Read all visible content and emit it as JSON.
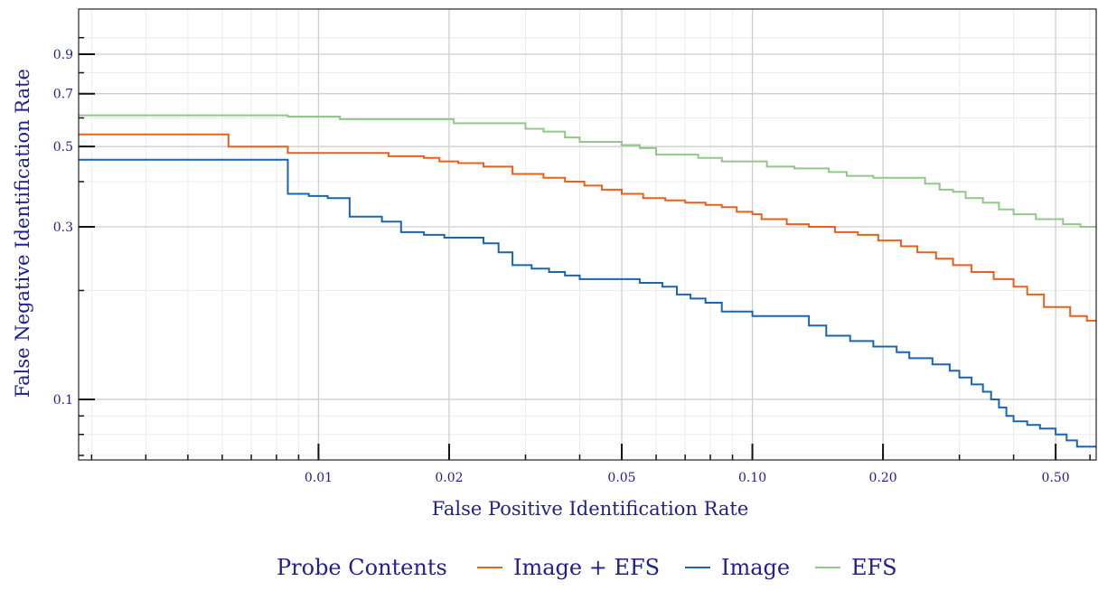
{
  "chart_data": {
    "type": "line",
    "step": true,
    "xlabel": "False Positive Identification Rate",
    "ylabel": "False Negative Identification Rate",
    "xscale": "log",
    "yscale": "log",
    "xlim": [
      0.0028,
      0.62
    ],
    "ylim": [
      0.068,
      1.2
    ],
    "x_tick_labels": [
      {
        "value": 0.01,
        "label": "0.01"
      },
      {
        "value": 0.02,
        "label": "0.02"
      },
      {
        "value": 0.05,
        "label": "0.05"
      },
      {
        "value": 0.1,
        "label": "0.10"
      },
      {
        "value": 0.2,
        "label": "0.20"
      },
      {
        "value": 0.5,
        "label": "0.50"
      }
    ],
    "y_tick_labels": [
      {
        "value": 0.1,
        "label": "0.1"
      },
      {
        "value": 0.3,
        "label": "0.3"
      },
      {
        "value": 0.5,
        "label": "0.5"
      },
      {
        "value": 0.7,
        "label": "0.7"
      },
      {
        "value": 0.9,
        "label": "0.9"
      }
    ],
    "grid": true,
    "legend": {
      "title": "Probe Contents",
      "position": "bottom"
    },
    "series": [
      {
        "name": "Image + EFS",
        "color": "#e8601c",
        "points": [
          [
            0.0028,
            0.54
          ],
          [
            0.0062,
            0.54
          ],
          [
            0.0062,
            0.5
          ],
          [
            0.0085,
            0.5
          ],
          [
            0.0085,
            0.48
          ],
          [
            0.0145,
            0.48
          ],
          [
            0.0145,
            0.47
          ],
          [
            0.0175,
            0.47
          ],
          [
            0.0175,
            0.465
          ],
          [
            0.019,
            0.465
          ],
          [
            0.019,
            0.455
          ],
          [
            0.021,
            0.455
          ],
          [
            0.021,
            0.45
          ],
          [
            0.024,
            0.45
          ],
          [
            0.024,
            0.44
          ],
          [
            0.028,
            0.44
          ],
          [
            0.028,
            0.42
          ],
          [
            0.033,
            0.42
          ],
          [
            0.033,
            0.41
          ],
          [
            0.037,
            0.41
          ],
          [
            0.037,
            0.4
          ],
          [
            0.041,
            0.4
          ],
          [
            0.041,
            0.39
          ],
          [
            0.045,
            0.39
          ],
          [
            0.045,
            0.38
          ],
          [
            0.05,
            0.38
          ],
          [
            0.05,
            0.37
          ],
          [
            0.056,
            0.37
          ],
          [
            0.056,
            0.36
          ],
          [
            0.063,
            0.36
          ],
          [
            0.063,
            0.355
          ],
          [
            0.07,
            0.355
          ],
          [
            0.07,
            0.35
          ],
          [
            0.078,
            0.35
          ],
          [
            0.078,
            0.345
          ],
          [
            0.085,
            0.345
          ],
          [
            0.085,
            0.34
          ],
          [
            0.092,
            0.34
          ],
          [
            0.092,
            0.33
          ],
          [
            0.1,
            0.33
          ],
          [
            0.1,
            0.325
          ],
          [
            0.105,
            0.325
          ],
          [
            0.105,
            0.315
          ],
          [
            0.12,
            0.315
          ],
          [
            0.12,
            0.305
          ],
          [
            0.135,
            0.305
          ],
          [
            0.135,
            0.3
          ],
          [
            0.155,
            0.3
          ],
          [
            0.155,
            0.29
          ],
          [
            0.175,
            0.29
          ],
          [
            0.175,
            0.285
          ],
          [
            0.195,
            0.285
          ],
          [
            0.195,
            0.275
          ],
          [
            0.22,
            0.275
          ],
          [
            0.22,
            0.265
          ],
          [
            0.24,
            0.265
          ],
          [
            0.24,
            0.255
          ],
          [
            0.265,
            0.255
          ],
          [
            0.265,
            0.245
          ],
          [
            0.29,
            0.245
          ],
          [
            0.29,
            0.235
          ],
          [
            0.32,
            0.235
          ],
          [
            0.32,
            0.225
          ],
          [
            0.36,
            0.225
          ],
          [
            0.36,
            0.215
          ],
          [
            0.4,
            0.215
          ],
          [
            0.4,
            0.205
          ],
          [
            0.43,
            0.205
          ],
          [
            0.43,
            0.195
          ],
          [
            0.47,
            0.195
          ],
          [
            0.47,
            0.18
          ],
          [
            0.54,
            0.18
          ],
          [
            0.54,
            0.17
          ],
          [
            0.59,
            0.17
          ],
          [
            0.59,
            0.165
          ],
          [
            0.62,
            0.165
          ]
        ]
      },
      {
        "name": "Image",
        "color": "#1965b0",
        "points": [
          [
            0.0028,
            0.46
          ],
          [
            0.0085,
            0.46
          ],
          [
            0.0085,
            0.37
          ],
          [
            0.0095,
            0.37
          ],
          [
            0.0095,
            0.365
          ],
          [
            0.0105,
            0.365
          ],
          [
            0.0105,
            0.36
          ],
          [
            0.0118,
            0.36
          ],
          [
            0.0118,
            0.32
          ],
          [
            0.014,
            0.32
          ],
          [
            0.014,
            0.31
          ],
          [
            0.0155,
            0.31
          ],
          [
            0.0155,
            0.29
          ],
          [
            0.0175,
            0.29
          ],
          [
            0.0175,
            0.285
          ],
          [
            0.0195,
            0.285
          ],
          [
            0.0195,
            0.28
          ],
          [
            0.024,
            0.28
          ],
          [
            0.024,
            0.27
          ],
          [
            0.026,
            0.27
          ],
          [
            0.026,
            0.255
          ],
          [
            0.028,
            0.255
          ],
          [
            0.028,
            0.235
          ],
          [
            0.031,
            0.235
          ],
          [
            0.031,
            0.23
          ],
          [
            0.034,
            0.23
          ],
          [
            0.034,
            0.225
          ],
          [
            0.037,
            0.225
          ],
          [
            0.037,
            0.22
          ],
          [
            0.04,
            0.22
          ],
          [
            0.04,
            0.215
          ],
          [
            0.055,
            0.215
          ],
          [
            0.055,
            0.21
          ],
          [
            0.062,
            0.21
          ],
          [
            0.062,
            0.205
          ],
          [
            0.067,
            0.205
          ],
          [
            0.067,
            0.195
          ],
          [
            0.072,
            0.195
          ],
          [
            0.072,
            0.19
          ],
          [
            0.078,
            0.19
          ],
          [
            0.078,
            0.185
          ],
          [
            0.085,
            0.185
          ],
          [
            0.085,
            0.175
          ],
          [
            0.1,
            0.175
          ],
          [
            0.1,
            0.17
          ],
          [
            0.135,
            0.17
          ],
          [
            0.135,
            0.16
          ],
          [
            0.148,
            0.16
          ],
          [
            0.148,
            0.15
          ],
          [
            0.168,
            0.15
          ],
          [
            0.168,
            0.145
          ],
          [
            0.19,
            0.145
          ],
          [
            0.19,
            0.14
          ],
          [
            0.215,
            0.14
          ],
          [
            0.215,
            0.135
          ],
          [
            0.23,
            0.135
          ],
          [
            0.23,
            0.13
          ],
          [
            0.26,
            0.13
          ],
          [
            0.26,
            0.125
          ],
          [
            0.285,
            0.125
          ],
          [
            0.285,
            0.12
          ],
          [
            0.3,
            0.12
          ],
          [
            0.3,
            0.115
          ],
          [
            0.32,
            0.115
          ],
          [
            0.32,
            0.11
          ],
          [
            0.34,
            0.11
          ],
          [
            0.34,
            0.105
          ],
          [
            0.355,
            0.105
          ],
          [
            0.355,
            0.1
          ],
          [
            0.37,
            0.1
          ],
          [
            0.37,
            0.095
          ],
          [
            0.385,
            0.095
          ],
          [
            0.385,
            0.09
          ],
          [
            0.4,
            0.09
          ],
          [
            0.4,
            0.087
          ],
          [
            0.43,
            0.087
          ],
          [
            0.43,
            0.085
          ],
          [
            0.46,
            0.085
          ],
          [
            0.46,
            0.083
          ],
          [
            0.5,
            0.083
          ],
          [
            0.5,
            0.08
          ],
          [
            0.53,
            0.08
          ],
          [
            0.53,
            0.077
          ],
          [
            0.56,
            0.077
          ],
          [
            0.56,
            0.074
          ],
          [
            0.62,
            0.074
          ]
        ]
      },
      {
        "name": "EFS",
        "color": "#90c987",
        "points": [
          [
            0.0028,
            0.61
          ],
          [
            0.0085,
            0.61
          ],
          [
            0.0085,
            0.605
          ],
          [
            0.0112,
            0.605
          ],
          [
            0.0112,
            0.595
          ],
          [
            0.0205,
            0.595
          ],
          [
            0.0205,
            0.58
          ],
          [
            0.03,
            0.58
          ],
          [
            0.03,
            0.56
          ],
          [
            0.033,
            0.56
          ],
          [
            0.033,
            0.55
          ],
          [
            0.037,
            0.55
          ],
          [
            0.037,
            0.53
          ],
          [
            0.04,
            0.53
          ],
          [
            0.04,
            0.515
          ],
          [
            0.05,
            0.515
          ],
          [
            0.05,
            0.505
          ],
          [
            0.055,
            0.505
          ],
          [
            0.055,
            0.495
          ],
          [
            0.06,
            0.495
          ],
          [
            0.06,
            0.475
          ],
          [
            0.075,
            0.475
          ],
          [
            0.075,
            0.465
          ],
          [
            0.085,
            0.465
          ],
          [
            0.085,
            0.455
          ],
          [
            0.108,
            0.455
          ],
          [
            0.108,
            0.44
          ],
          [
            0.125,
            0.44
          ],
          [
            0.125,
            0.435
          ],
          [
            0.15,
            0.435
          ],
          [
            0.15,
            0.425
          ],
          [
            0.165,
            0.425
          ],
          [
            0.165,
            0.415
          ],
          [
            0.19,
            0.415
          ],
          [
            0.19,
            0.41
          ],
          [
            0.25,
            0.41
          ],
          [
            0.25,
            0.395
          ],
          [
            0.27,
            0.395
          ],
          [
            0.27,
            0.38
          ],
          [
            0.29,
            0.38
          ],
          [
            0.29,
            0.375
          ],
          [
            0.31,
            0.375
          ],
          [
            0.31,
            0.36
          ],
          [
            0.34,
            0.36
          ],
          [
            0.34,
            0.35
          ],
          [
            0.37,
            0.35
          ],
          [
            0.37,
            0.335
          ],
          [
            0.4,
            0.335
          ],
          [
            0.4,
            0.325
          ],
          [
            0.45,
            0.325
          ],
          [
            0.45,
            0.315
          ],
          [
            0.52,
            0.315
          ],
          [
            0.52,
            0.305
          ],
          [
            0.57,
            0.305
          ],
          [
            0.57,
            0.3
          ],
          [
            0.62,
            0.3
          ]
        ]
      }
    ]
  }
}
